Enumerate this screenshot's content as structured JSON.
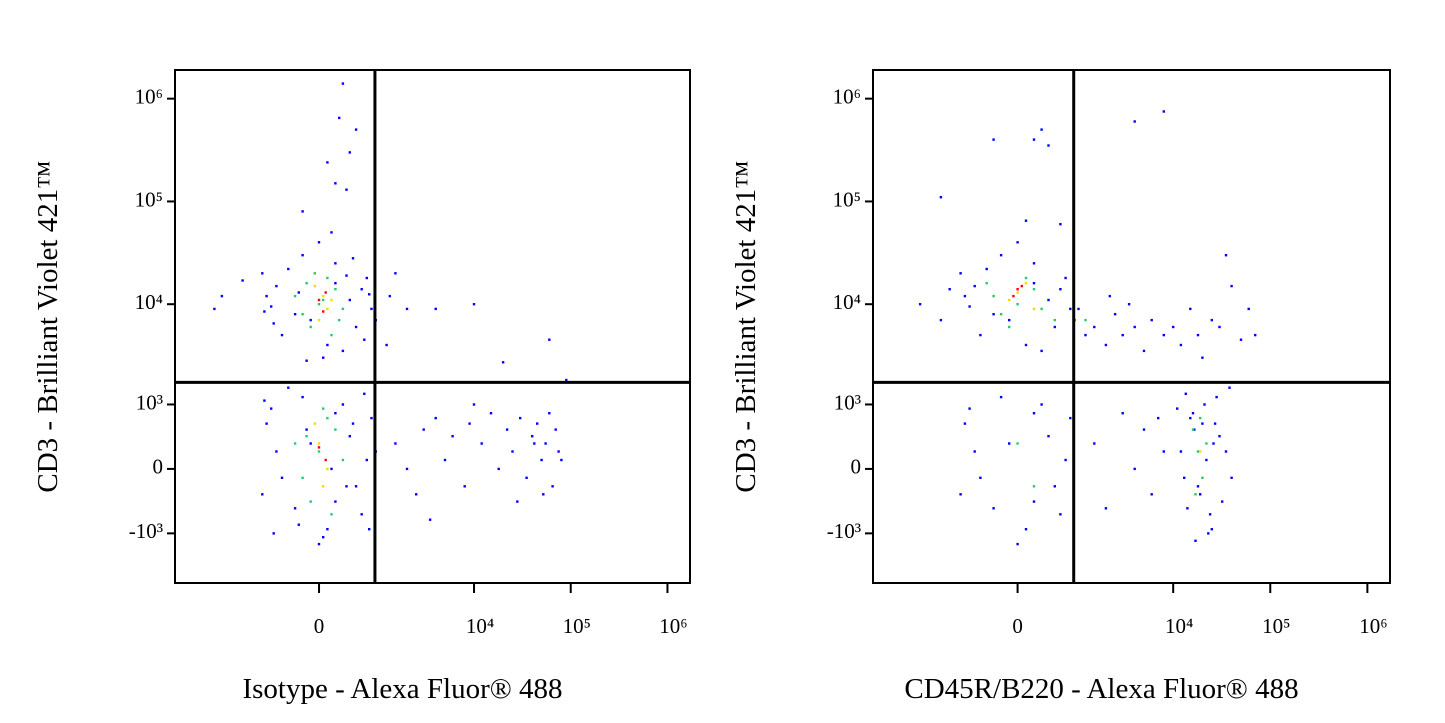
{
  "chart_data": [
    {
      "type": "scatter",
      "xlabel": "Isotype - Alexa Fluor® 488",
      "ylabel": "CD3 - Brilliant Violet 421™",
      "xscale": "biexponential",
      "yscale": "biexponential",
      "xlim": [
        -7700,
        1710000
      ],
      "ylim": [
        -3200,
        1900000
      ],
      "xticks": [
        0,
        {
          "value": 10000,
          "label": "10⁴"
        },
        {
          "value": 100000,
          "label": "10⁵"
        },
        {
          "value": 1000000,
          "label": "10⁶"
        }
      ],
      "yticks": [
        {
          "value": -1000,
          "label": "-10³"
        },
        0,
        {
          "value": 1000,
          "label": "10³"
        },
        {
          "value": 10000,
          "label": "10⁴"
        },
        {
          "value": 100000,
          "label": "10⁵"
        },
        {
          "value": 1000000,
          "label": "10⁶"
        }
      ],
      "gate": {
        "x": 880,
        "y": 1700
      },
      "series": [
        {
          "color": "#0000ff",
          "x": [
            -600,
            -300,
            200,
            500,
            -800,
            700,
            100,
            -200,
            400,
            -500,
            800,
            0,
            -900,
            300,
            600,
            -100,
            -700,
            200,
            900,
            -400,
            50,
            450,
            -250,
            650,
            -650,
            150,
            350,
            -850,
            750,
            -150,
            -2500,
            -3000,
            1500,
            1200,
            2000,
            1300,
            4000,
            10000,
            60000,
            20000,
            -1500,
            300,
            200,
            100,
            400,
            500,
            350,
            250,
            -200,
            -600,
            -300,
            200,
            500,
            -800,
            700,
            100,
            -200,
            400,
            -500,
            800,
            0,
            -900,
            300,
            600,
            -100,
            -700,
            200,
            900,
            -400,
            50,
            450,
            -250,
            650,
            -650,
            150,
            350,
            -850,
            750,
            -150,
            1500,
            2000,
            3000,
            2500,
            4000,
            5000,
            6000,
            8000,
            9000,
            12000,
            15000,
            18000,
            22000,
            25000,
            30000,
            35000,
            40000,
            45000,
            50000,
            55000,
            60000,
            65000,
            70000,
            75000,
            80000,
            42000,
            52000,
            28000,
            3500,
            10000,
            90000
          ],
          "y": [
            15000,
            8000,
            25000,
            6000,
            12000,
            18000,
            4000,
            30000,
            11000,
            5000,
            9000,
            40000,
            20000,
            3500,
            14000,
            7000,
            9500,
            16000,
            7000,
            22000,
            3000,
            28000,
            13000,
            4500,
            6500,
            50000,
            19000,
            8500,
            12500,
            2800,
            12000,
            9000,
            20000,
            4000,
            9000,
            12000,
            9000,
            10000,
            4500,
            2700,
            17000,
            1400000,
            150000,
            240000,
            300000,
            500000,
            130000,
            650000,
            80000,
            200,
            -500,
            800,
            -200,
            600,
            100,
            -900,
            1200,
            400,
            -100,
            700,
            -1300,
            -300,
            1000,
            -600,
            300,
            900,
            -400,
            200,
            1500,
            -1100,
            600,
            -800,
            1300,
            -1000,
            0,
            -200,
            1100,
            -900,
            500,
            300,
            0,
            500,
            -300,
            700,
            100,
            400,
            -200,
            600,
            300,
            800,
            0,
            500,
            200,
            700,
            -100,
            400,
            600,
            100,
            300,
            800,
            -200,
            500,
            200,
            100,
            300,
            -300,
            -400,
            -700,
            1000,
            1800
          ]
        },
        {
          "color": "#22cc66",
          "x": [
            0,
            200,
            -200,
            100,
            -100,
            300,
            -300,
            150,
            50,
            -150,
            250,
            -50,
            0,
            200,
            -200,
            100,
            -100,
            300,
            -300,
            150,
            50,
            -150
          ],
          "y": [
            10000,
            14000,
            8000,
            18000,
            6000,
            9000,
            12000,
            5000,
            11000,
            16000,
            7000,
            20000,
            200,
            500,
            -100,
            700,
            -400,
            100,
            300,
            -600,
            900,
            400
          ]
        },
        {
          "color": "#ffd700",
          "x": [
            50,
            100,
            -50,
            0,
            150,
            0,
            100,
            -50,
            50
          ],
          "y": [
            12000,
            9000,
            15000,
            7000,
            11000,
            300,
            0,
            600,
            -200
          ]
        },
        {
          "color": "#ff0000",
          "x": [
            80,
            0,
            50,
            0,
            80
          ],
          "y": [
            13000,
            11000,
            8500,
            250,
            100
          ]
        }
      ]
    },
    {
      "type": "scatter",
      "xlabel": "CD45R/B220 - Alexa Fluor® 488",
      "ylabel": "CD3 - Brilliant Violet 421™",
      "xscale": "biexponential",
      "yscale": "biexponential",
      "xlim": [
        -7700,
        1710000
      ],
      "ylim": [
        -3200,
        1900000
      ],
      "xticks": [
        0,
        {
          "value": 10000,
          "label": "10⁴"
        },
        {
          "value": 100000,
          "label": "10⁵"
        },
        {
          "value": 1000000,
          "label": "10⁶"
        }
      ],
      "yticks": [
        {
          "value": -1000,
          "label": "-10³"
        },
        0,
        {
          "value": 1000,
          "label": "10³"
        },
        {
          "value": 10000,
          "label": "10⁴"
        },
        {
          "value": 100000,
          "label": "10⁵"
        },
        {
          "value": 1000000,
          "label": "10⁶"
        }
      ],
      "gate": {
        "x": 880,
        "y": 1700
      },
      "series": [
        {
          "color": "#0000ff",
          "x": [
            -600,
            -300,
            200,
            500,
            -800,
            700,
            100,
            -200,
            400,
            -500,
            800,
            0,
            -900,
            300,
            600,
            -100,
            -700,
            200,
            900,
            -400,
            1200,
            1000,
            -1200,
            -2500,
            -1500,
            1500,
            2000,
            2500,
            3000,
            4000,
            5000,
            6000,
            8000,
            10000,
            12000,
            15000,
            18000,
            20000,
            25000,
            30000,
            40000,
            50000,
            60000,
            70000,
            35000,
            2200,
            3500,
            300,
            400,
            200,
            -300,
            4000,
            8000,
            -1500,
            100,
            600,
            -600,
            -300,
            200,
            500,
            -800,
            700,
            100,
            -200,
            400,
            -500,
            800,
            0,
            -900,
            300,
            600,
            -100,
            -700,
            200,
            1500,
            2000,
            3000,
            4000,
            5000,
            6000,
            7000,
            8000,
            12000,
            14000,
            16000,
            18000,
            20000,
            22000,
            25000,
            28000,
            30000,
            13000,
            15000,
            17000,
            19000,
            21000,
            24000,
            26000,
            11000,
            32000,
            35000,
            38000,
            40000,
            13500,
            23000,
            16500,
            27000
          ],
          "y": [
            15000,
            8000,
            25000,
            6000,
            12000,
            18000,
            4000,
            30000,
            11000,
            5000,
            9000,
            40000,
            20000,
            3500,
            14000,
            7000,
            9500,
            16000,
            7000,
            22000,
            5000,
            9000,
            14000,
            10000,
            7000,
            6000,
            4000,
            8000,
            5000,
            6000,
            3500,
            7000,
            5000,
            6000,
            4000,
            9000,
            5000,
            3000,
            7000,
            6000,
            15000,
            4500,
            9000,
            5000,
            30000,
            12000,
            10000,
            500000,
            350000,
            400000,
            400000,
            600000,
            750000,
            110000,
            65000,
            60000,
            200,
            -500,
            800,
            -200,
            600,
            100,
            -900,
            1200,
            400,
            -100,
            700,
            -1300,
            -300,
            1000,
            -600,
            300,
            900,
            -400,
            300,
            -500,
            800,
            0,
            500,
            -300,
            700,
            200,
            200,
            -500,
            800,
            -200,
            600,
            100,
            -900,
            1200,
            400,
            -100,
            700,
            -1200,
            -300,
            1000,
            -600,
            300,
            900,
            -400,
            200,
            1500,
            -100,
            1300,
            -1000,
            500,
            600
          ]
        },
        {
          "color": "#22cc66",
          "x": [
            0,
            200,
            -200,
            100,
            -100,
            300,
            -300,
            500,
            -400,
            1200,
            0,
            200,
            18000,
            20000,
            16000,
            22000,
            19000,
            17000
          ],
          "y": [
            10000,
            14000,
            8000,
            18000,
            6000,
            9000,
            12000,
            7000,
            16000,
            7000,
            300,
            -200,
            200,
            -100,
            500,
            300,
            700,
            -300
          ]
        },
        {
          "color": "#ffd700",
          "x": [
            0,
            -100,
            100,
            200,
            19000
          ],
          "y": [
            13000,
            11000,
            16000,
            9000,
            200
          ]
        },
        {
          "color": "#ff0000",
          "x": [
            0,
            -50,
            50
          ],
          "y": [
            14000,
            12000,
            15000
          ]
        }
      ]
    }
  ]
}
